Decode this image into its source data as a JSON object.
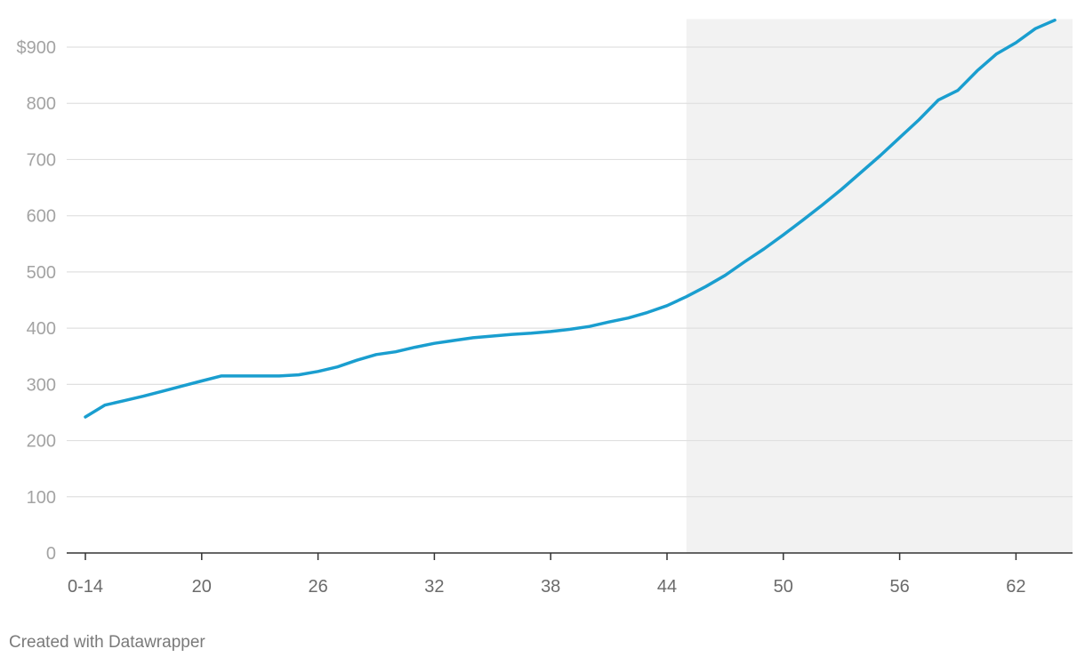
{
  "chart_data": {
    "type": "line",
    "title": "",
    "xlabel": "",
    "ylabel": "",
    "ylim": [
      0,
      950
    ],
    "y_ticks": [
      0,
      100,
      200,
      300,
      400,
      500,
      600,
      700,
      800,
      900
    ],
    "y_tick_labels": [
      "0",
      "100",
      "200",
      "300",
      "400",
      "500",
      "600",
      "700",
      "800",
      "$900"
    ],
    "x_ticks": [
      14,
      20,
      26,
      32,
      38,
      44,
      50,
      56,
      62
    ],
    "x_tick_labels": [
      "0-14",
      "20",
      "26",
      "32",
      "38",
      "44",
      "50",
      "56",
      "62"
    ],
    "shaded_region": {
      "x_start": 45,
      "x_end": 65,
      "color": "#f2f2f2"
    },
    "grid": true,
    "legend": "none",
    "series": [
      {
        "color": "#1a9ecf",
        "x": [
          14,
          15,
          16,
          17,
          18,
          19,
          20,
          21,
          22,
          23,
          24,
          25,
          26,
          27,
          28,
          29,
          30,
          31,
          32,
          33,
          34,
          35,
          36,
          37,
          38,
          39,
          40,
          41,
          42,
          43,
          44,
          45,
          46,
          47,
          48,
          49,
          50,
          51,
          52,
          53,
          54,
          55,
          56,
          57,
          58,
          59,
          60,
          61,
          62,
          63,
          64
        ],
        "values": [
          242,
          263,
          271,
          279,
          288,
          297,
          306,
          315,
          315,
          315,
          315,
          317,
          323,
          331,
          343,
          353,
          358,
          366,
          373,
          378,
          383,
          386,
          389,
          391,
          394,
          398,
          403,
          411,
          418,
          428,
          440,
          456,
          474,
          494,
          518,
          541,
          566,
          592,
          619,
          647,
          677,
          707,
          739,
          771,
          806,
          823,
          858,
          888,
          908,
          933,
          948
        ]
      }
    ]
  },
  "credit": "Created with Datawrapper"
}
